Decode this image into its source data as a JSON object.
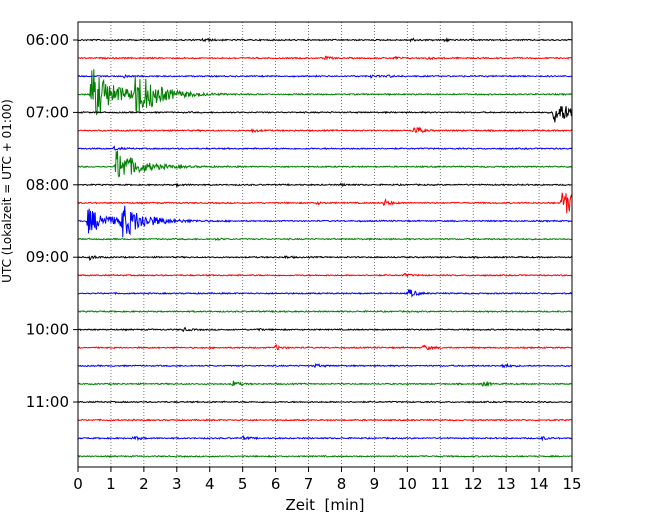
{
  "chart_data": {
    "type": "line",
    "title": "",
    "xlabel": "Zeit  [min]",
    "ylabel": "UTC (Lokalzeit = UTC + 01:00)",
    "xlim": [
      0,
      15
    ],
    "x_ticks": [
      "0",
      "1",
      "2",
      "3",
      "4",
      "5",
      "6",
      "7",
      "8",
      "9",
      "10",
      "11",
      "12",
      "13",
      "14",
      "15"
    ],
    "y_tick_labels": [
      "06:00",
      "07:00",
      "08:00",
      "09:00",
      "10:00",
      "11:00"
    ],
    "grid": "vertical dotted",
    "trace_interval_min": 15,
    "trace_colors": [
      "#000000",
      "#ff0000",
      "#0000ff",
      "#008000"
    ],
    "traces": [
      {
        "start_utc": "06:00",
        "color": "#000000",
        "events": [
          {
            "t": 3.8,
            "amp": 0.3
          },
          {
            "t": 10.1,
            "amp": 0.25
          },
          {
            "t": 11.1,
            "amp": 0.2
          }
        ]
      },
      {
        "start_utc": "06:15",
        "color": "#ff0000",
        "events": [
          {
            "t": 7.5,
            "amp": 0.2
          },
          {
            "t": 9.6,
            "amp": 0.15
          },
          {
            "t": 10.6,
            "amp": 0.15
          }
        ]
      },
      {
        "start_utc": "06:30",
        "color": "#0000ff",
        "events": [
          {
            "t": 1.4,
            "amp": 0.2
          },
          {
            "t": 8.9,
            "amp": 0.15
          },
          {
            "t": 9.4,
            "amp": 0.15
          }
        ]
      },
      {
        "start_utc": "06:45",
        "color": "#008000",
        "events": [
          {
            "t": 0.4,
            "amp": 4.0
          },
          {
            "t": 1.75,
            "amp": 3.2
          }
        ]
      },
      {
        "start_utc": "07:00",
        "color": "#000000",
        "events": [
          {
            "t": 14.45,
            "amp": 1.6
          }
        ]
      },
      {
        "start_utc": "07:15",
        "color": "#ff0000",
        "events": [
          {
            "t": 5.3,
            "amp": 0.25
          },
          {
            "t": 10.2,
            "amp": 0.8
          }
        ]
      },
      {
        "start_utc": "07:30",
        "color": "#0000ff",
        "events": [
          {
            "t": 1.1,
            "amp": 0.25
          }
        ]
      },
      {
        "start_utc": "07:45",
        "color": "#008000",
        "events": [
          {
            "t": 1.15,
            "amp": 2.5
          }
        ]
      },
      {
        "start_utc": "08:00",
        "color": "#000000",
        "events": [
          {
            "t": 3.0,
            "amp": 0.15
          },
          {
            "t": 8.0,
            "amp": 0.15
          }
        ]
      },
      {
        "start_utc": "08:15",
        "color": "#ff0000",
        "events": [
          {
            "t": 7.2,
            "amp": 0.2
          },
          {
            "t": 9.3,
            "amp": 0.5
          },
          {
            "t": 14.7,
            "amp": 1.8
          }
        ]
      },
      {
        "start_utc": "08:30",
        "color": "#0000ff",
        "events": [
          {
            "t": 0.3,
            "amp": 1.8
          },
          {
            "t": 1.3,
            "amp": 2.4
          }
        ]
      },
      {
        "start_utc": "08:45",
        "color": "#008000",
        "events": [
          {
            "t": 4.2,
            "amp": 0.12
          }
        ]
      },
      {
        "start_utc": "09:00",
        "color": "#000000",
        "events": [
          {
            "t": 0.35,
            "amp": 0.35
          },
          {
            "t": 6.3,
            "amp": 0.15
          }
        ]
      },
      {
        "start_utc": "09:15",
        "color": "#ff0000",
        "events": [
          {
            "t": 9.9,
            "amp": 0.2
          }
        ]
      },
      {
        "start_utc": "09:30",
        "color": "#0000ff",
        "events": [
          {
            "t": 10.05,
            "amp": 0.7
          }
        ]
      },
      {
        "start_utc": "09:45",
        "color": "#008000",
        "events": [
          {
            "t": 6.0,
            "amp": 0.12
          }
        ]
      },
      {
        "start_utc": "10:00",
        "color": "#000000",
        "events": [
          {
            "t": 3.2,
            "amp": 0.25
          },
          {
            "t": 5.4,
            "amp": 0.15
          }
        ]
      },
      {
        "start_utc": "10:15",
        "color": "#ff0000",
        "events": [
          {
            "t": 6.0,
            "amp": 0.35
          },
          {
            "t": 10.5,
            "amp": 0.45
          }
        ]
      },
      {
        "start_utc": "10:30",
        "color": "#0000ff",
        "events": [
          {
            "t": 7.2,
            "amp": 0.25
          },
          {
            "t": 12.9,
            "amp": 0.3
          }
        ]
      },
      {
        "start_utc": "10:45",
        "color": "#008000",
        "events": [
          {
            "t": 4.7,
            "amp": 0.45
          },
          {
            "t": 12.3,
            "amp": 0.35
          }
        ]
      },
      {
        "start_utc": "11:00",
        "color": "#000000",
        "events": []
      },
      {
        "start_utc": "11:15",
        "color": "#ff0000",
        "events": []
      },
      {
        "start_utc": "11:30",
        "color": "#0000ff",
        "events": [
          {
            "t": 1.7,
            "amp": 0.3
          },
          {
            "t": 5.0,
            "amp": 0.25
          },
          {
            "t": 14.1,
            "amp": 0.2
          }
        ]
      },
      {
        "start_utc": "11:45",
        "color": "#008000",
        "events": []
      }
    ]
  }
}
